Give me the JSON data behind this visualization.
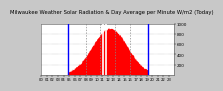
{
  "title": "Milwaukee Weather Solar Radiation & Day Average per Minute W/m2 (Today)",
  "bg_color": "#c8c8c8",
  "plot_bg_color": "#ffffff",
  "bar_color": "#ff0000",
  "blue_line_color": "#0000ff",
  "white_line_color": "#ffffff",
  "grid_color": "#888888",
  "n_points": 1440,
  "peak_minute": 740,
  "peak_value": 920,
  "sigma": 190,
  "sunrise_minute": 285,
  "sunset_minute": 1155,
  "white_line1": 665,
  "white_line2": 695,
  "ylim": [
    0,
    1000
  ],
  "yticks": [
    200,
    400,
    600,
    800,
    1000
  ],
  "dashed_lines": [
    480,
    640,
    800,
    960
  ],
  "title_fontsize": 3.8,
  "tick_fontsize": 3.0,
  "noise_std": 25
}
